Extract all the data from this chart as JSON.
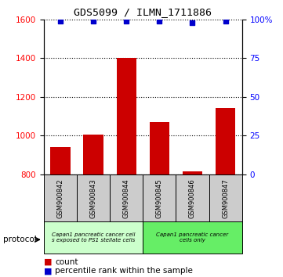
{
  "title": "GDS5099 / ILMN_1711886",
  "samples": [
    "GSM900842",
    "GSM900843",
    "GSM900844",
    "GSM900845",
    "GSM900846",
    "GSM900847"
  ],
  "counts": [
    940,
    1005,
    1400,
    1070,
    815,
    1145
  ],
  "percentiles": [
    99,
    99,
    99,
    99,
    98,
    99
  ],
  "ylim_left": [
    800,
    1600
  ],
  "ylim_right": [
    0,
    100
  ],
  "yticks_left": [
    800,
    1000,
    1200,
    1400,
    1600
  ],
  "yticks_right": [
    0,
    25,
    50,
    75,
    100
  ],
  "bar_color": "#cc0000",
  "dot_color": "#0000cc",
  "group1_label": "Capan1 pancreatic cancer cell\ns exposed to PS1 stellate cells",
  "group2_label": "Capan1 pancreatic cancer\ncells only",
  "group1_color": "#ccffcc",
  "group2_color": "#66ee66",
  "tick_bg_color": "#cccccc",
  "protocol_label": "protocol"
}
